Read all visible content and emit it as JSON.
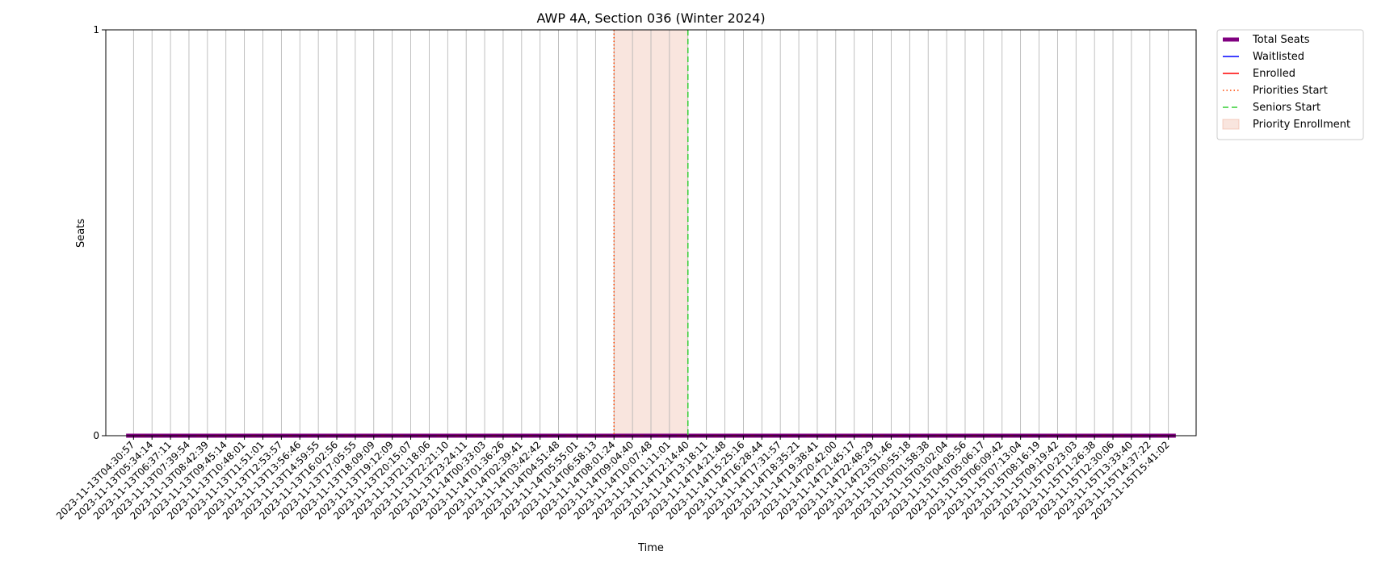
{
  "chart_data": {
    "type": "line",
    "title": "AWP 4A, Section 036 (Winter 2024)",
    "xlabel": "Time",
    "ylabel": "Seats",
    "ylim": [
      0,
      1
    ],
    "y_ticks": [
      "0",
      "1"
    ],
    "grid": "vertical",
    "legend_position": "outside-top-right",
    "x": [
      "2023-11-13T04:30:57",
      "2023-11-13T05:34:14",
      "2023-11-13T06:37:11",
      "2023-11-13T07:39:54",
      "2023-11-13T08:42:39",
      "2023-11-13T09:45:14",
      "2023-11-13T10:48:01",
      "2023-11-13T11:51:01",
      "2023-11-13T12:53:57",
      "2023-11-13T13:56:46",
      "2023-11-13T14:59:55",
      "2023-11-13T16:02:56",
      "2023-11-13T17:05:55",
      "2023-11-13T18:09:09",
      "2023-11-13T19:12:09",
      "2023-11-13T20:15:07",
      "2023-11-13T21:18:06",
      "2023-11-13T22:21:10",
      "2023-11-13T23:24:11",
      "2023-11-14T00:33:03",
      "2023-11-14T01:36:26",
      "2023-11-14T02:39:41",
      "2023-11-14T03:42:42",
      "2023-11-14T04:51:48",
      "2023-11-14T05:55:01",
      "2023-11-14T06:58:13",
      "2023-11-14T08:01:24",
      "2023-11-14T09:04:40",
      "2023-11-14T10:07:48",
      "2023-11-14T11:11:01",
      "2023-11-14T12:14:40",
      "2023-11-14T13:18:11",
      "2023-11-14T14:21:48",
      "2023-11-14T15:25:16",
      "2023-11-14T16:28:44",
      "2023-11-14T17:31:57",
      "2023-11-14T18:35:21",
      "2023-11-14T19:38:41",
      "2023-11-14T20:42:00",
      "2023-11-14T21:45:17",
      "2023-11-14T22:48:29",
      "2023-11-14T23:51:46",
      "2023-11-15T00:55:18",
      "2023-11-15T01:58:38",
      "2023-11-15T03:02:04",
      "2023-11-15T04:05:56",
      "2023-11-15T05:06:17",
      "2023-11-15T06:09:42",
      "2023-11-15T07:13:04",
      "2023-11-15T08:16:19",
      "2023-11-15T09:19:42",
      "2023-11-15T10:23:03",
      "2023-11-15T11:26:38",
      "2023-11-15T12:30:06",
      "2023-11-15T13:33:40",
      "2023-11-15T14:37:22",
      "2023-11-15T15:41:02"
    ],
    "series": [
      {
        "name": "Total Seats",
        "style": "thick-solid",
        "color": "#800080",
        "values": [
          0,
          0,
          0,
          0,
          0,
          0,
          0,
          0,
          0,
          0,
          0,
          0,
          0,
          0,
          0,
          0,
          0,
          0,
          0,
          0,
          0,
          0,
          0,
          0,
          0,
          0,
          0,
          0,
          0,
          0,
          0,
          0,
          0,
          0,
          0,
          0,
          0,
          0,
          0,
          0,
          0,
          0,
          0,
          0,
          0,
          0,
          0,
          0,
          0,
          0,
          0,
          0,
          0,
          0,
          0,
          0,
          0
        ]
      },
      {
        "name": "Waitlisted",
        "style": "solid",
        "color": "#0000ff",
        "values": [
          0,
          0,
          0,
          0,
          0,
          0,
          0,
          0,
          0,
          0,
          0,
          0,
          0,
          0,
          0,
          0,
          0,
          0,
          0,
          0,
          0,
          0,
          0,
          0,
          0,
          0,
          0,
          0,
          0,
          0,
          0,
          0,
          0,
          0,
          0,
          0,
          0,
          0,
          0,
          0,
          0,
          0,
          0,
          0,
          0,
          0,
          0,
          0,
          0,
          0,
          0,
          0,
          0,
          0,
          0,
          0,
          0
        ]
      },
      {
        "name": "Enrolled",
        "style": "solid",
        "color": "#ff0000",
        "values": [
          0,
          0,
          0,
          0,
          0,
          0,
          0,
          0,
          0,
          0,
          0,
          0,
          0,
          0,
          0,
          0,
          0,
          0,
          0,
          0,
          0,
          0,
          0,
          0,
          0,
          0,
          0,
          0,
          0,
          0,
          0,
          0,
          0,
          0,
          0,
          0,
          0,
          0,
          0,
          0,
          0,
          0,
          0,
          0,
          0,
          0,
          0,
          0,
          0,
          0,
          0,
          0,
          0,
          0,
          0,
          0,
          0
        ]
      }
    ],
    "markers": [
      {
        "name": "Priorities Start",
        "style": "dotted",
        "color": "#ff4500",
        "at": "2023-11-14T08:01:24"
      },
      {
        "name": "Seniors Start",
        "style": "dashed",
        "color": "#32cd32",
        "at": "2023-11-14T12:14:40"
      }
    ],
    "spans": [
      {
        "name": "Priority Enrollment",
        "color": "#e9967a",
        "from": "2023-11-14T08:01:24",
        "to": "2023-11-14T12:14:40"
      }
    ]
  }
}
